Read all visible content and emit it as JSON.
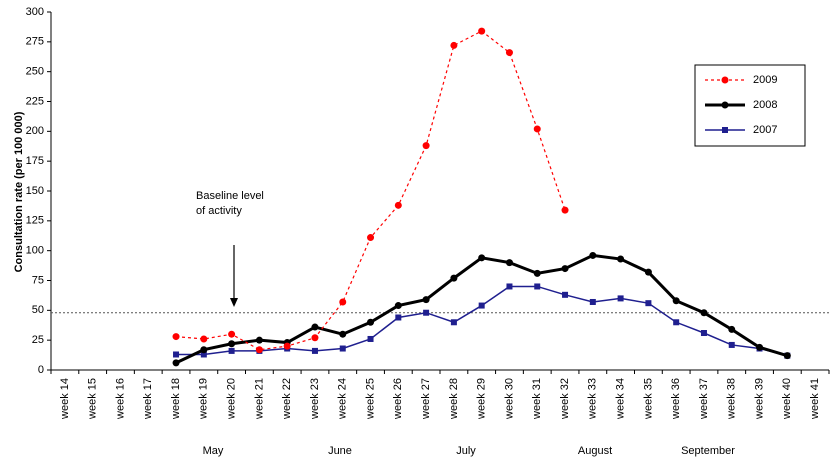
{
  "chart_data": {
    "type": "line",
    "y_label": "Consultation rate (per 100 000)",
    "categories": [
      "week 14",
      "week 15",
      "week 16",
      "week 17",
      "week 18",
      "week 19",
      "week 20",
      "week 21",
      "week 22",
      "week 23",
      "week 24",
      "week 25",
      "week 26",
      "week 27",
      "week 28",
      "week 29",
      "week 30",
      "week 31",
      "week 32",
      "week 33",
      "week 34",
      "week 35",
      "week 36",
      "week 37",
      "week 38",
      "week 39",
      "week 40",
      "week 41"
    ],
    "series": [
      {
        "name": "2009",
        "color": "#ff0000",
        "marker": "circle",
        "dash": "dotted",
        "width": 1.2,
        "values": [
          null,
          null,
          null,
          null,
          28,
          26,
          30,
          17,
          20,
          27,
          57,
          111,
          138,
          188,
          272,
          284,
          266,
          202,
          134,
          null,
          null,
          null,
          null,
          null,
          null,
          null,
          null,
          null
        ]
      },
      {
        "name": "2008",
        "color": "#000000",
        "marker": "circle",
        "dash": "solid",
        "width": 3,
        "values": [
          null,
          null,
          null,
          null,
          6,
          17,
          22,
          25,
          23,
          36,
          30,
          40,
          54,
          59,
          77,
          94,
          90,
          81,
          85,
          96,
          93,
          82,
          58,
          48,
          34,
          19,
          12,
          null
        ]
      },
      {
        "name": "2007",
        "color": "#1f1f8f",
        "marker": "square",
        "dash": "solid",
        "width": 1.5,
        "values": [
          null,
          null,
          null,
          null,
          13,
          13,
          16,
          16,
          18,
          16,
          18,
          26,
          44,
          48,
          40,
          54,
          70,
          70,
          63,
          57,
          60,
          56,
          40,
          31,
          21,
          18,
          12,
          null
        ]
      }
    ],
    "baseline": 48,
    "annotation": [
      "Baseline level",
      "of activity"
    ],
    "months": [
      "May",
      "June",
      "July",
      "August",
      "September"
    ],
    "ylim": [
      0,
      300
    ],
    "yticks": [
      0,
      25,
      50,
      75,
      100,
      125,
      150,
      175,
      200,
      225,
      250,
      275,
      300
    ],
    "legend": "upper right"
  }
}
